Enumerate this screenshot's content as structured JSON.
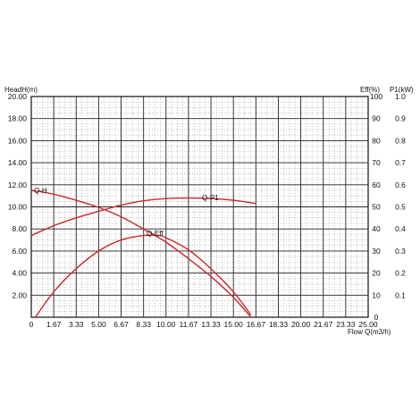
{
  "chart_data": {
    "type": "line",
    "left_axis_label": "HeadH(m)",
    "eff_axis_label": "Eff(%)",
    "power_axis_label": "P1(kW)",
    "x_axis_label": "Flow Q(m3/h)",
    "xlim": [
      0,
      25
    ],
    "ylim": [
      0,
      20
    ],
    "x_ticks": [
      "0",
      "1.67",
      "3.33",
      "5.00",
      "6.67",
      "8.33",
      "10.00",
      "11.67",
      "13.33",
      "15.00",
      "16.67",
      "18.33",
      "20.00",
      "21.67",
      "23.33",
      "25.00"
    ],
    "left_ticks": [
      "20.00",
      "18.00",
      "16.00",
      "14.00",
      "12.00",
      "10.00",
      "8.00",
      "6.00",
      "4.00",
      "2.00"
    ],
    "eff_ticks": [
      "100",
      "90",
      "80",
      "70",
      "60",
      "50",
      "40",
      "30",
      "20",
      "10",
      "0"
    ],
    "power_ticks": [
      "1.0",
      "0.9",
      "0.8",
      "0.7",
      "0.6",
      "0.5",
      "0.4",
      "0.3",
      "0.2",
      "0.1"
    ],
    "grid": true,
    "curve_color": "#c8282e",
    "series": [
      {
        "name": "Q-H",
        "axis": "left",
        "x": [
          0,
          1.67,
          3.33,
          5.0,
          6.67,
          8.33,
          10.0,
          11.67,
          13.33,
          15.0,
          16.3
        ],
        "y": [
          11.5,
          11.15,
          10.6,
          9.95,
          9.1,
          8.0,
          6.8,
          5.3,
          3.7,
          1.8,
          0.0
        ]
      },
      {
        "name": "Q-P1",
        "axis": "left",
        "x": [
          0,
          1.67,
          3.33,
          5.0,
          6.67,
          8.33,
          10.0,
          11.67,
          13.33,
          15.0,
          16.67
        ],
        "y": [
          7.4,
          8.3,
          9.0,
          9.6,
          10.15,
          10.55,
          10.75,
          10.8,
          10.75,
          10.6,
          10.3
        ]
      },
      {
        "name": "Q-Eff",
        "axis": "left",
        "x": [
          0.3,
          1.67,
          3.33,
          5.0,
          6.67,
          8.33,
          9.5,
          10.0,
          11.67,
          13.33,
          15.0,
          16.3
        ],
        "y": [
          0.0,
          2.3,
          4.4,
          6.0,
          7.0,
          7.4,
          7.4,
          7.2,
          6.1,
          4.4,
          2.3,
          0.2
        ]
      }
    ]
  }
}
